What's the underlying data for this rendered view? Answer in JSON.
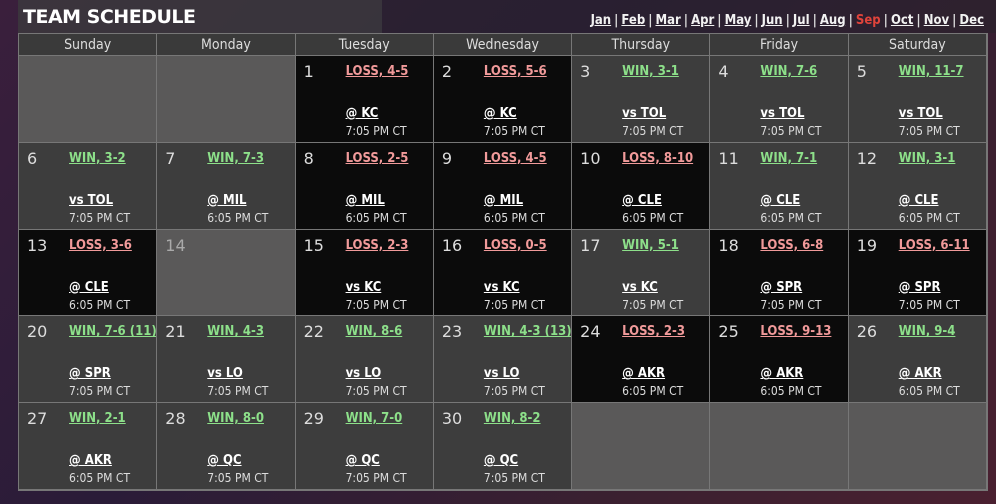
{
  "title": "TEAM SCHEDULE",
  "months": [
    "Jan",
    "Feb",
    "Mar",
    "Apr",
    "May",
    "Jun",
    "Jul",
    "Aug",
    "Sep",
    "Oct",
    "Nov",
    "Dec"
  ],
  "active_month": "Sep",
  "weekdays": [
    "Sunday",
    "Monday",
    "Tuesday",
    "Wednesday",
    "Thursday",
    "Friday",
    "Saturday"
  ],
  "weeks": [
    [
      null,
      null,
      {
        "day": "1",
        "result": "LOSS, 4-5",
        "outcome": "loss",
        "opponent": "@ KC",
        "time": "7:05 PM CT"
      },
      {
        "day": "2",
        "result": "LOSS, 5-6",
        "outcome": "loss",
        "opponent": "@ KC",
        "time": "7:05 PM CT"
      },
      {
        "day": "3",
        "result": "WIN, 3-1",
        "outcome": "win",
        "opponent": "vs TOL",
        "time": "7:05 PM CT"
      },
      {
        "day": "4",
        "result": "WIN, 7-6",
        "outcome": "win",
        "opponent": "vs TOL",
        "time": "7:05 PM CT"
      },
      {
        "day": "5",
        "result": "WIN, 11-7",
        "outcome": "win",
        "opponent": "vs TOL",
        "time": "7:05 PM CT"
      }
    ],
    [
      {
        "day": "6",
        "result": "WIN, 3-2",
        "outcome": "win",
        "opponent": "vs TOL",
        "time": "7:05 PM CT"
      },
      {
        "day": "7",
        "result": "WIN, 7-3",
        "outcome": "win",
        "opponent": "@ MIL",
        "time": "6:05 PM CT"
      },
      {
        "day": "8",
        "result": "LOSS, 2-5",
        "outcome": "loss",
        "opponent": "@ MIL",
        "time": "6:05 PM CT"
      },
      {
        "day": "9",
        "result": "LOSS, 4-5",
        "outcome": "loss",
        "opponent": "@ MIL",
        "time": "6:05 PM CT"
      },
      {
        "day": "10",
        "result": "LOSS, 8-10",
        "outcome": "loss",
        "opponent": "@ CLE",
        "time": "6:05 PM CT"
      },
      {
        "day": "11",
        "result": "WIN, 7-1",
        "outcome": "win",
        "opponent": "@ CLE",
        "time": "6:05 PM CT"
      },
      {
        "day": "12",
        "result": "WIN, 3-1",
        "outcome": "win",
        "opponent": "@ CLE",
        "time": "6:05 PM CT"
      }
    ],
    [
      {
        "day": "13",
        "result": "LOSS, 3-6",
        "outcome": "loss",
        "opponent": "@ CLE",
        "time": "6:05 PM CT"
      },
      {
        "day": "14",
        "off": true
      },
      {
        "day": "15",
        "result": "LOSS, 2-3",
        "outcome": "loss",
        "opponent": "vs KC",
        "time": "7:05 PM CT"
      },
      {
        "day": "16",
        "result": "LOSS, 0-5",
        "outcome": "loss",
        "opponent": "vs KC",
        "time": "7:05 PM CT"
      },
      {
        "day": "17",
        "result": "WIN, 5-1",
        "outcome": "win",
        "opponent": "vs KC",
        "time": "7:05 PM CT"
      },
      {
        "day": "18",
        "result": "LOSS, 6-8",
        "outcome": "loss",
        "opponent": "@ SPR",
        "time": "7:05 PM CT"
      },
      {
        "day": "19",
        "result": "LOSS, 6-11",
        "outcome": "loss",
        "opponent": "@ SPR",
        "time": "7:05 PM CT"
      }
    ],
    [
      {
        "day": "20",
        "result": "WIN, 7-6 (11)",
        "outcome": "win",
        "opponent": "@ SPR",
        "time": "7:05 PM CT"
      },
      {
        "day": "21",
        "result": "WIN, 4-3",
        "outcome": "win",
        "opponent": "vs LO",
        "time": "7:05 PM CT"
      },
      {
        "day": "22",
        "result": "WIN, 8-6",
        "outcome": "win",
        "opponent": "vs LO",
        "time": "7:05 PM CT"
      },
      {
        "day": "23",
        "result": "WIN, 4-3 (13)",
        "outcome": "win",
        "opponent": "vs LO",
        "time": "7:05 PM CT"
      },
      {
        "day": "24",
        "result": "LOSS, 2-3",
        "outcome": "loss",
        "opponent": "@ AKR",
        "time": "6:05 PM CT"
      },
      {
        "day": "25",
        "result": "LOSS, 9-13",
        "outcome": "loss",
        "opponent": "@ AKR",
        "time": "6:05 PM CT"
      },
      {
        "day": "26",
        "result": "WIN, 9-4",
        "outcome": "win",
        "opponent": "@ AKR",
        "time": "6:05 PM CT"
      }
    ],
    [
      {
        "day": "27",
        "result": "WIN, 2-1",
        "outcome": "win",
        "opponent": "@ AKR",
        "time": "6:05 PM CT"
      },
      {
        "day": "28",
        "result": "WIN, 8-0",
        "outcome": "win",
        "opponent": "@ QC",
        "time": "7:05 PM CT"
      },
      {
        "day": "29",
        "result": "WIN, 7-0",
        "outcome": "win",
        "opponent": "@ QC",
        "time": "7:05 PM CT"
      },
      {
        "day": "30",
        "result": "WIN, 8-2",
        "outcome": "win",
        "opponent": "@ QC",
        "time": "7:05 PM CT"
      },
      null,
      null,
      null
    ]
  ],
  "colors": {
    "win": "#8de08a",
    "loss": "#f19a9a",
    "active_month": "#e0433b"
  }
}
